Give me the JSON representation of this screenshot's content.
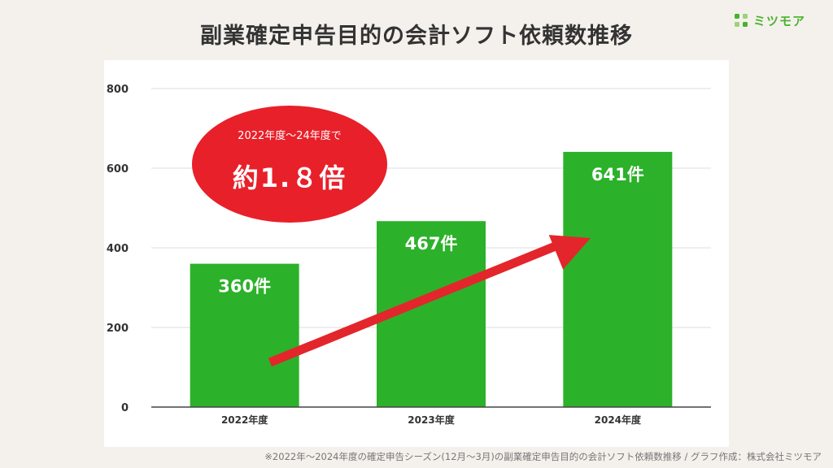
{
  "title": "副業確定申告目的の会計ソフト依頼数推移",
  "brand": {
    "name": "ミツモア",
    "color": "#49b22d"
  },
  "footnote": "※2022年〜2024年度の確定申告シーズン(12月〜3月)の副業確定申告目的の会計ソフト依頼数推移 / グラフ作成：株式会社ミツモア",
  "highlight": {
    "line1": "2022年度〜24年度で",
    "line2": "約1.８倍",
    "color": "#e8202a"
  },
  "chart_data": {
    "type": "bar",
    "categories": [
      "2022年度",
      "2023年度",
      "2024年度"
    ],
    "values": [
      360,
      467,
      641
    ],
    "value_labels": [
      "360件",
      "467件",
      "641件"
    ],
    "y_ticks": [
      "0",
      "200",
      "400",
      "600",
      "800"
    ],
    "ylim": [
      0,
      800
    ],
    "grid": true,
    "bar_color": "#2cb12a",
    "arrow_color": "#e3262b",
    "xlabel": "",
    "ylabel": ""
  }
}
